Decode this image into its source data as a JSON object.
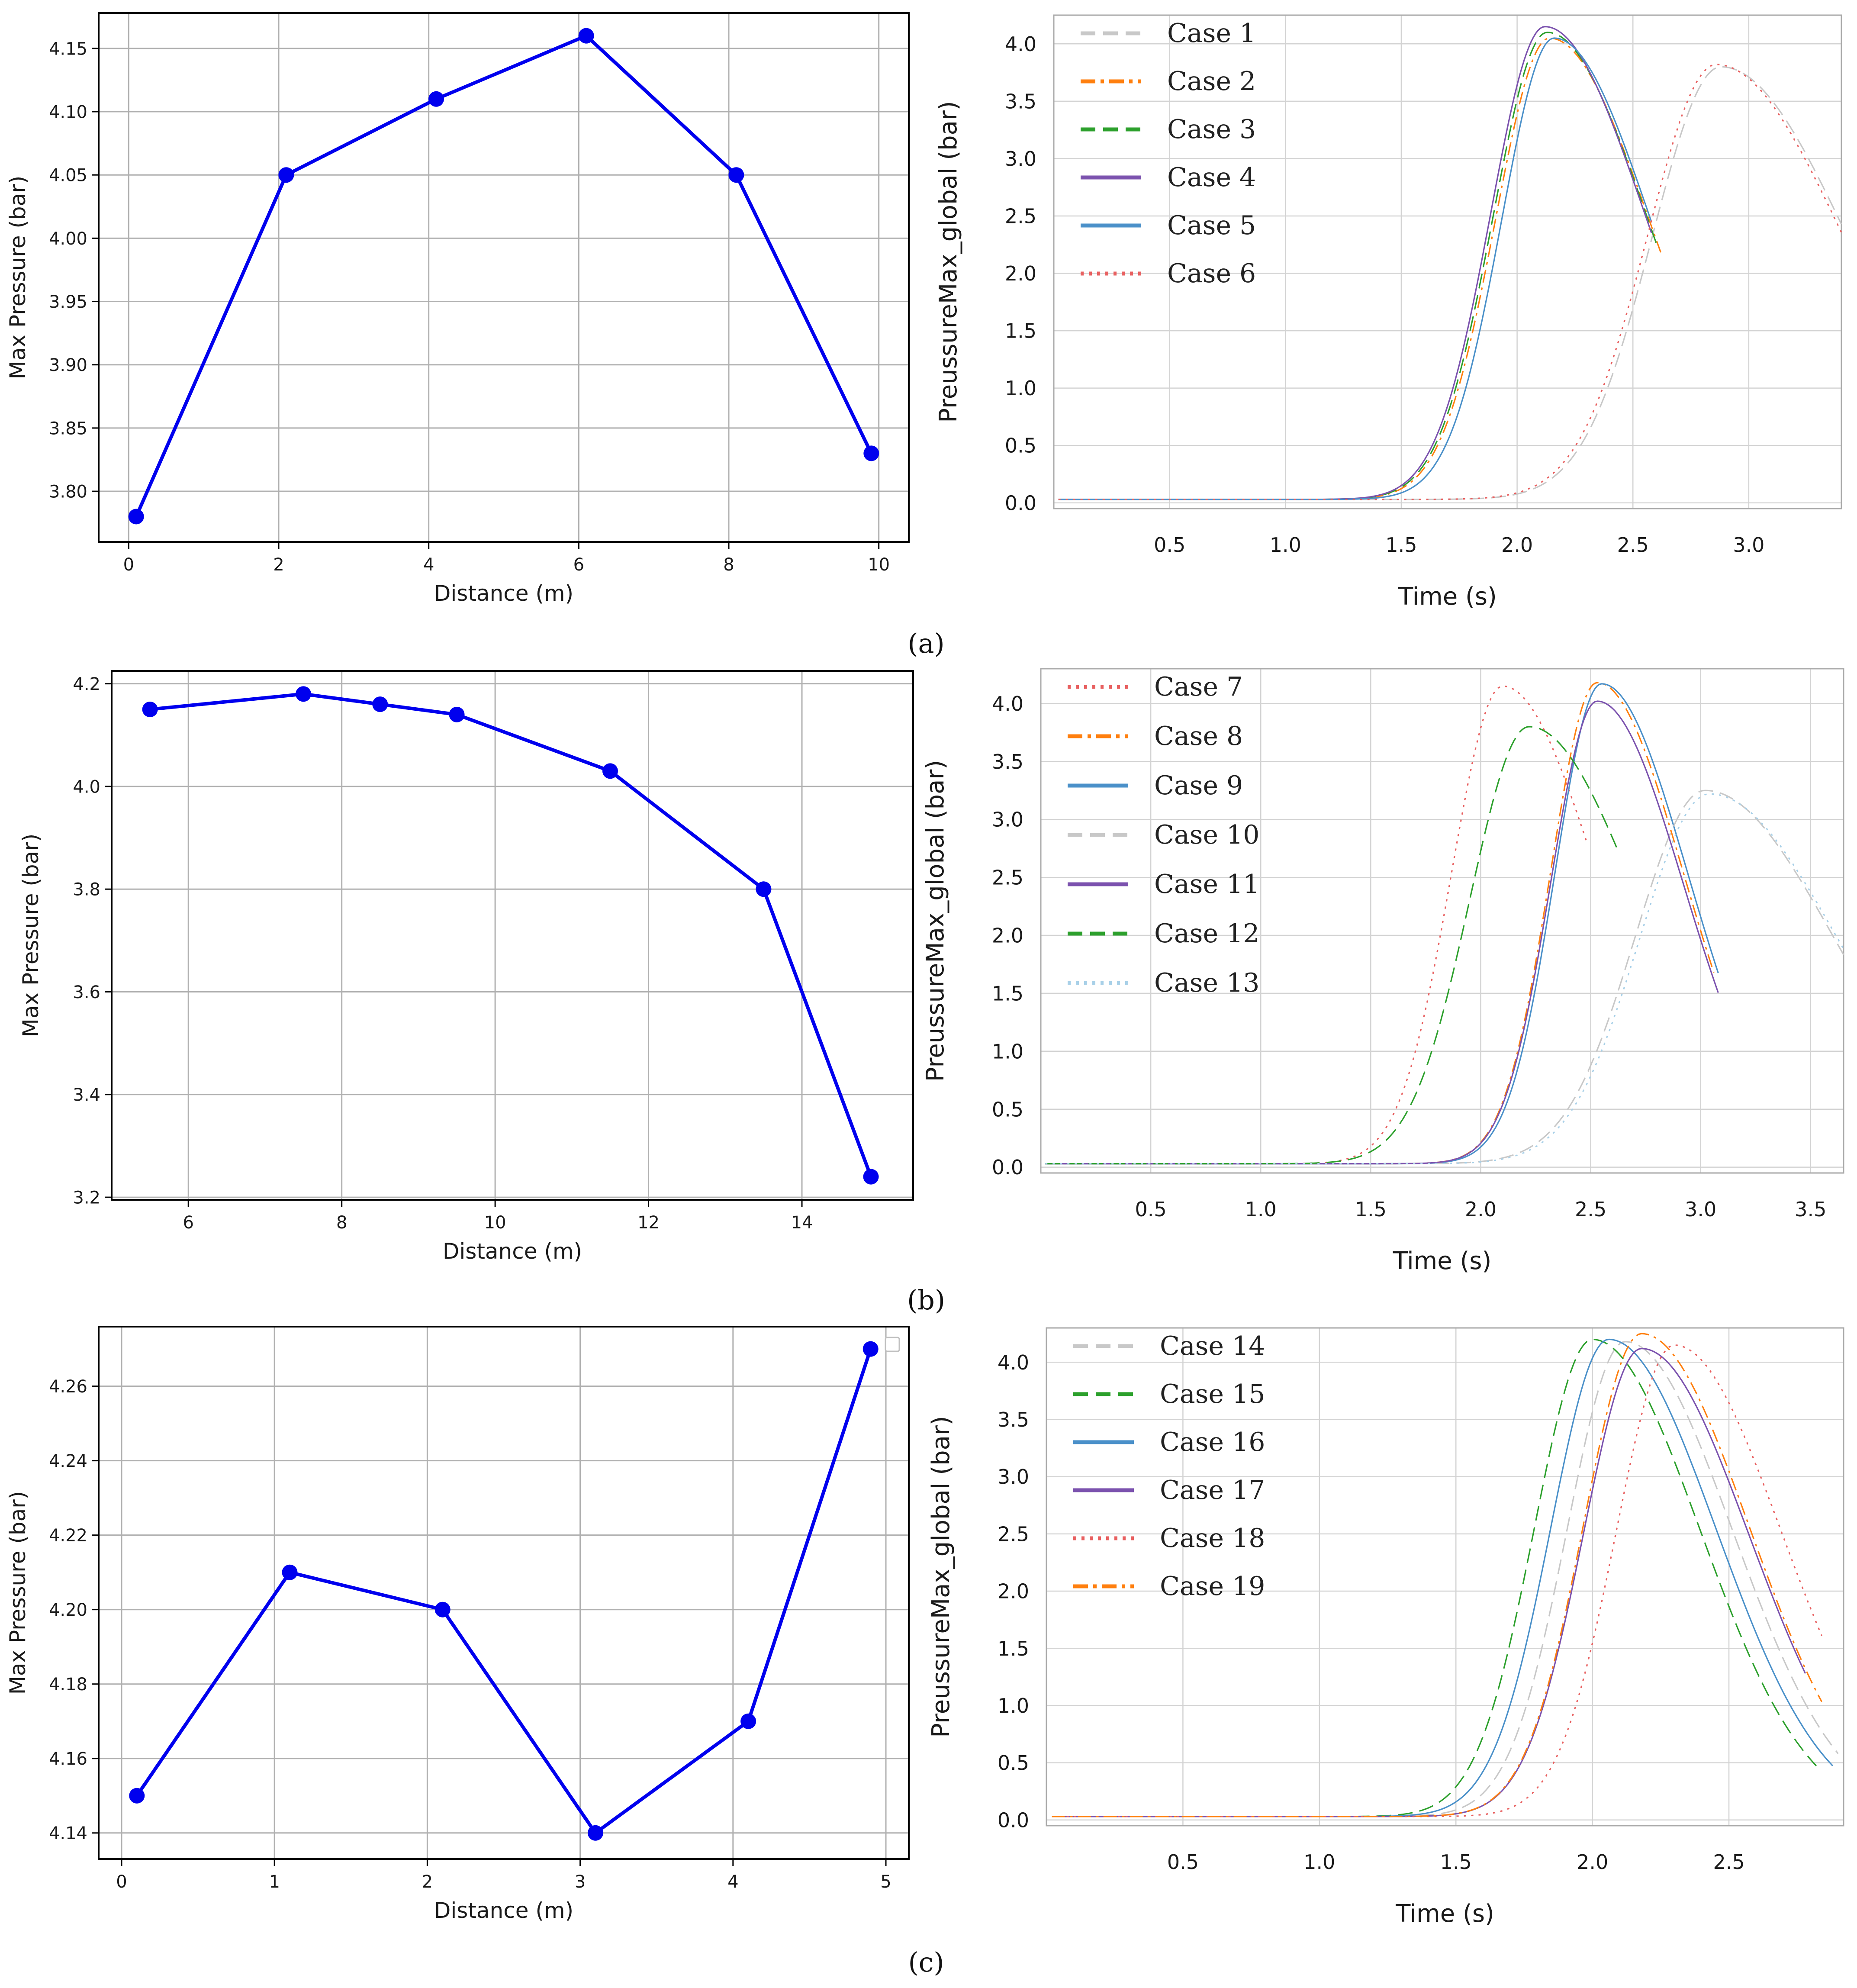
{
  "colors": {
    "marker": "#0000ee",
    "grid_left": "#b0b0b0",
    "grid_right": "#d3d3d3",
    "axis": "#000000",
    "right_axis": "#aaaaaa"
  },
  "panel_labels": [
    "(a)",
    "(b)",
    "(c)"
  ],
  "chart_data": [
    {
      "id": "a-left",
      "type": "line",
      "xlabel": "Distance (m)",
      "ylabel": "Max Pressure (bar)",
      "xlim": [
        -0.4,
        10.4
      ],
      "ylim": [
        3.76,
        4.178
      ],
      "xticks": [
        0,
        2,
        4,
        6,
        8,
        10
      ],
      "yticks": [
        3.8,
        3.85,
        3.9,
        3.95,
        4.0,
        4.05,
        4.1,
        4.15
      ],
      "ydecimals": 2,
      "grid": true,
      "series": [
        {
          "name": "Max Pressure",
          "color": "#0000ee",
          "x": [
            0.1,
            2.1,
            4.1,
            6.1,
            8.1,
            9.9
          ],
          "y": [
            3.78,
            4.05,
            4.11,
            4.16,
            4.05,
            3.83
          ]
        }
      ]
    },
    {
      "id": "b-left",
      "type": "line",
      "xlabel": "Distance (m)",
      "ylabel": "Max Pressure (bar)",
      "xlim": [
        5.0,
        15.45
      ],
      "ylim": [
        3.195,
        4.225
      ],
      "xticks": [
        6,
        8,
        10,
        12,
        14
      ],
      "yticks": [
        3.2,
        3.4,
        3.6,
        3.8,
        4.0,
        4.2
      ],
      "ydecimals": 1,
      "grid": true,
      "series": [
        {
          "name": "Max Pressure",
          "color": "#0000ee",
          "x": [
            5.5,
            7.5,
            8.5,
            9.5,
            11.5,
            13.5,
            14.9
          ],
          "y": [
            4.15,
            4.18,
            4.16,
            4.14,
            4.03,
            3.8,
            3.24
          ]
        }
      ]
    },
    {
      "id": "c-left",
      "type": "line",
      "xlabel": "Distance (m)",
      "ylabel": "Max Pressure (bar)",
      "xlim": [
        -0.15,
        5.15
      ],
      "ylim": [
        4.133,
        4.276
      ],
      "xticks": [
        0,
        1,
        2,
        3,
        4,
        5
      ],
      "yticks": [
        4.14,
        4.16,
        4.18,
        4.2,
        4.22,
        4.24,
        4.26
      ],
      "ydecimals": 2,
      "grid": true,
      "series": [
        {
          "name": "Max Pressure",
          "color": "#0000ee",
          "x": [
            0.1,
            1.1,
            2.1,
            3.1,
            4.1,
            4.9
          ],
          "y": [
            4.15,
            4.21,
            4.2,
            4.14,
            4.17,
            4.27
          ]
        }
      ]
    },
    {
      "id": "a-right",
      "type": "line",
      "xlabel": "Time (s)",
      "ylabel": "PreussureMax_global (bar)",
      "xlim": [
        0.0,
        3.4
      ],
      "ylim": [
        -0.05,
        4.25
      ],
      "xticks": [
        0.5,
        1.0,
        1.5,
        2.0,
        2.5,
        3.0
      ],
      "yticks": [
        0.0,
        0.5,
        1.0,
        1.5,
        2.0,
        2.5,
        3.0,
        3.5,
        4.0
      ],
      "ydecimals": 1,
      "grid": true,
      "legend": "top-left",
      "series": [
        {
          "name": "Case 1",
          "color": "#c8c8c8",
          "dash": "dash",
          "t0": 2.88,
          "peak": 3.8,
          "w": 0.42,
          "tend": 3.4
        },
        {
          "name": "Case 2",
          "color": "#ff7f0e",
          "dash": "dashdot",
          "t0": 2.14,
          "peak": 4.05,
          "w": 0.33,
          "tend": 2.62
        },
        {
          "name": "Case 3",
          "color": "#2ca02c",
          "dash": "dash",
          "t0": 2.13,
          "peak": 4.1,
          "w": 0.33,
          "tend": 2.6
        },
        {
          "name": "Case 4",
          "color": "#7b52ae",
          "dash": "solid",
          "t0": 2.12,
          "peak": 4.15,
          "w": 0.33,
          "tend": 2.58
        },
        {
          "name": "Case 5",
          "color": "#4a90c9",
          "dash": "solid",
          "t0": 2.16,
          "peak": 4.05,
          "w": 0.32,
          "tend": 2.58
        },
        {
          "name": "Case 6",
          "color": "#e86060",
          "dash": "dot",
          "t0": 2.86,
          "peak": 3.82,
          "w": 0.42,
          "tend": 3.4
        }
      ]
    },
    {
      "id": "b-right",
      "type": "line",
      "xlabel": "Time (s)",
      "ylabel": "PreussureMax_global (bar)",
      "xlim": [
        0.0,
        3.65
      ],
      "ylim": [
        -0.05,
        4.3
      ],
      "xticks": [
        0.5,
        1.0,
        1.5,
        2.0,
        2.5,
        3.0,
        3.5
      ],
      "yticks": [
        0.0,
        0.5,
        1.0,
        1.5,
        2.0,
        2.5,
        3.0,
        3.5,
        4.0
      ],
      "ydecimals": 1,
      "grid": true,
      "legend": "top-left",
      "series": [
        {
          "name": "Case 7",
          "color": "#e86060",
          "dash": "dot",
          "t0": 2.1,
          "peak": 4.15,
          "w": 0.33,
          "tend": 2.48
        },
        {
          "name": "Case 8",
          "color": "#ff7f0e",
          "dash": "dashdot",
          "t0": 2.53,
          "peak": 4.18,
          "w": 0.3,
          "tend": 3.06
        },
        {
          "name": "Case 9",
          "color": "#4a90c9",
          "dash": "solid",
          "t0": 2.55,
          "peak": 4.17,
          "w": 0.3,
          "tend": 3.08
        },
        {
          "name": "Case 10",
          "color": "#c8c8c8",
          "dash": "dash",
          "t0": 3.02,
          "peak": 3.25,
          "w": 0.45,
          "tend": 3.65
        },
        {
          "name": "Case 11",
          "color": "#7b52ae",
          "dash": "solid",
          "t0": 2.53,
          "peak": 4.02,
          "w": 0.3,
          "tend": 3.08
        },
        {
          "name": "Case 12",
          "color": "#2ca02c",
          "dash": "dash",
          "t0": 2.22,
          "peak": 3.8,
          "w": 0.38,
          "tend": 2.62
        },
        {
          "name": "Case 13",
          "color": "#a8d0e8",
          "dash": "dot",
          "t0": 3.04,
          "peak": 3.22,
          "w": 0.45,
          "tend": 3.65
        }
      ]
    },
    {
      "id": "c-right",
      "type": "line",
      "xlabel": "Time (s)",
      "ylabel": "PreussureMax_global (bar)",
      "xlim": [
        0.0,
        2.92
      ],
      "ylim": [
        -0.05,
        4.3
      ],
      "xticks": [
        0.5,
        1.0,
        1.5,
        2.0,
        2.5
      ],
      "yticks": [
        0.0,
        0.5,
        1.0,
        1.5,
        2.0,
        2.5,
        3.0,
        3.5,
        4.0
      ],
      "ydecimals": 1,
      "grid": true,
      "legend": "top-left",
      "series": [
        {
          "name": "Case 14",
          "color": "#c8c8c8",
          "dash": "dash",
          "t0": 2.12,
          "peak": 4.18,
          "w": 0.3,
          "tend": 2.9
        },
        {
          "name": "Case 15",
          "color": "#2ca02c",
          "dash": "dash",
          "t0": 2.0,
          "peak": 4.2,
          "w": 0.3,
          "tend": 2.82
        },
        {
          "name": "Case 16",
          "color": "#4a90c9",
          "dash": "solid",
          "t0": 2.06,
          "peak": 4.2,
          "w": 0.3,
          "tend": 2.88
        },
        {
          "name": "Case 17",
          "color": "#7b52ae",
          "dash": "solid",
          "t0": 2.18,
          "peak": 4.12,
          "w": 0.3,
          "tend": 2.78
        },
        {
          "name": "Case 18",
          "color": "#e86060",
          "dash": "dot",
          "t0": 2.3,
          "peak": 4.15,
          "w": 0.3,
          "tend": 2.84
        },
        {
          "name": "Case 19",
          "color": "#ff7f0e",
          "dash": "dashdot",
          "t0": 2.18,
          "peak": 4.25,
          "w": 0.3,
          "tend": 2.84
        }
      ]
    }
  ]
}
